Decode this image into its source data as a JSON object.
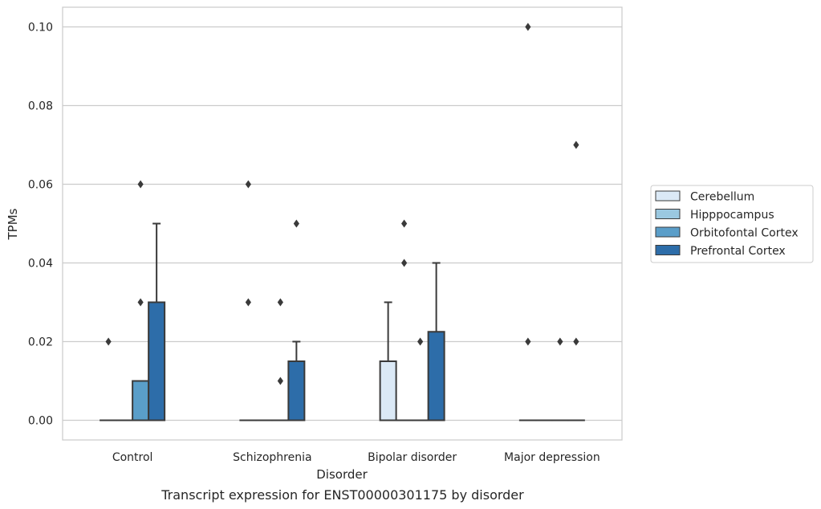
{
  "chart_data": {
    "type": "box",
    "title": "",
    "caption": "Transcript expression for ENST00000301175 by disorder",
    "xlabel": "Disorder",
    "ylabel": "TPMs",
    "ylim": [
      -0.005,
      0.105
    ],
    "yticks": [
      0.0,
      0.02,
      0.04,
      0.06,
      0.08,
      0.1
    ],
    "ytick_labels": [
      "0.00",
      "0.02",
      "0.04",
      "0.06",
      "0.08",
      "0.10"
    ],
    "categories": [
      "Control",
      "Schizophrenia",
      "Bipolar disorder",
      "Major depression"
    ],
    "grid": "horizontal",
    "legend_position": "right",
    "series": [
      {
        "name": "Cerebellum",
        "color": "#dbe9f6",
        "boxes": [
          {
            "q1": 0,
            "median": 0,
            "q3": 0,
            "whisker_low": 0,
            "whisker_high": 0,
            "outliers": [
              0.02
            ]
          },
          {
            "q1": 0,
            "median": 0,
            "q3": 0,
            "whisker_low": 0,
            "whisker_high": 0,
            "outliers": [
              0.03,
              0.06
            ]
          },
          {
            "q1": 0,
            "median": 0,
            "q3": 0.015,
            "whisker_low": 0,
            "whisker_high": 0.03,
            "outliers": []
          },
          {
            "q1": 0,
            "median": 0,
            "q3": 0,
            "whisker_low": 0,
            "whisker_high": 0,
            "outliers": [
              0.02,
              0.1
            ]
          }
        ]
      },
      {
        "name": "Hipppocampus",
        "color": "#9ac8e0",
        "boxes": [
          {
            "q1": 0,
            "median": 0,
            "q3": 0,
            "whisker_low": 0,
            "whisker_high": 0,
            "outliers": []
          },
          {
            "q1": 0,
            "median": 0,
            "q3": 0,
            "whisker_low": 0,
            "whisker_high": 0,
            "outliers": []
          },
          {
            "q1": 0,
            "median": 0,
            "q3": 0,
            "whisker_low": 0,
            "whisker_high": 0,
            "outliers": [
              0.04,
              0.05
            ]
          },
          {
            "q1": 0,
            "median": 0,
            "q3": 0,
            "whisker_low": 0,
            "whisker_high": 0,
            "outliers": []
          }
        ]
      },
      {
        "name": "Orbitofontal Cortex",
        "color": "#5a9ec9",
        "boxes": [
          {
            "q1": 0,
            "median": 0,
            "q3": 0.01,
            "whisker_low": 0,
            "whisker_high": 0.01,
            "outliers": [
              0.03,
              0.06
            ]
          },
          {
            "q1": 0,
            "median": 0,
            "q3": 0,
            "whisker_low": 0,
            "whisker_high": 0,
            "outliers": [
              0.01,
              0.03
            ]
          },
          {
            "q1": 0,
            "median": 0,
            "q3": 0,
            "whisker_low": 0,
            "whisker_high": 0,
            "outliers": [
              0.02
            ]
          },
          {
            "q1": 0,
            "median": 0,
            "q3": 0,
            "whisker_low": 0,
            "whisker_high": 0,
            "outliers": [
              0.02
            ]
          }
        ]
      },
      {
        "name": "Prefrontal Cortex",
        "color": "#2d6da9",
        "boxes": [
          {
            "q1": 0,
            "median": 0,
            "q3": 0.03,
            "whisker_low": 0,
            "whisker_high": 0.05,
            "outliers": []
          },
          {
            "q1": 0,
            "median": 0,
            "q3": 0.015,
            "whisker_low": 0,
            "whisker_high": 0.02,
            "outliers": [
              0.05
            ]
          },
          {
            "q1": 0,
            "median": 0,
            "q3": 0.0225,
            "whisker_low": 0,
            "whisker_high": 0.04,
            "outliers": []
          },
          {
            "q1": 0,
            "median": 0,
            "q3": 0,
            "whisker_low": 0,
            "whisker_high": 0,
            "outliers": [
              0.02,
              0.07
            ]
          }
        ]
      }
    ]
  }
}
